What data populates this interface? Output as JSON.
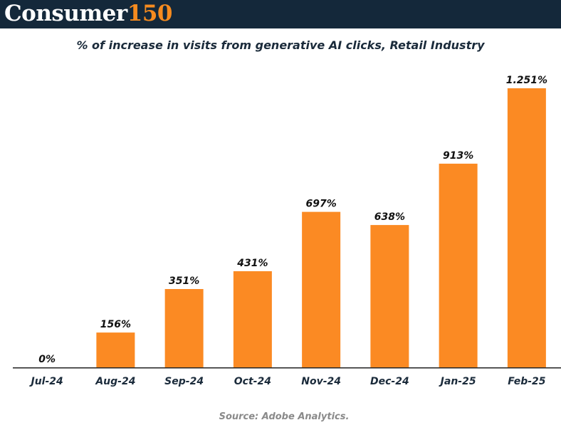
{
  "brand": {
    "word": "Consumer",
    "number": "150",
    "colors": {
      "background": "#14283a",
      "word": "#ffffff",
      "number": "#f68b1f"
    }
  },
  "chart_data": {
    "type": "bar",
    "title": "% of increase in visits from generative AI clicks, Retail Industry",
    "xlabel": "",
    "ylabel": "",
    "categories": [
      "Jul-24",
      "Aug-24",
      "Sep-24",
      "Oct-24",
      "Nov-24",
      "Dec-24",
      "Jan-25",
      "Feb-25"
    ],
    "values": [
      0,
      156,
      351,
      431,
      697,
      638,
      913,
      1251
    ],
    "data_labels": [
      "0%",
      "156%",
      "351%",
      "431%",
      "697%",
      "638%",
      "913%",
      "1.251%"
    ],
    "ylim": [
      0,
      1251
    ],
    "grid": false,
    "bar_color": "#fb8a23",
    "source": "Source: Adobe Analytics."
  }
}
